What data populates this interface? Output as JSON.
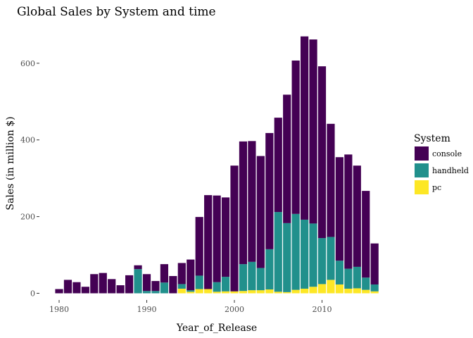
{
  "chart_data": {
    "type": "bar",
    "stacked": true,
    "title": "Global Sales by System and time",
    "xlabel": "Year_of_Release",
    "ylabel": "Sales (in million $)",
    "xticks": [
      1980,
      1990,
      2000,
      2010
    ],
    "yticks": [
      0,
      200,
      400,
      600
    ],
    "ylim": [
      0,
      680
    ],
    "grid": false,
    "legend_title": "System",
    "legend_position": "right",
    "years": [
      1980,
      1981,
      1982,
      1983,
      1984,
      1985,
      1986,
      1987,
      1988,
      1989,
      1990,
      1991,
      1992,
      1993,
      1994,
      1995,
      1996,
      1997,
      1998,
      1999,
      2000,
      2001,
      2002,
      2003,
      2004,
      2005,
      2006,
      2007,
      2008,
      2009,
      2010,
      2011,
      2012,
      2013,
      2014,
      2015,
      2016
    ],
    "series": [
      {
        "name": "pc",
        "color": "#FDE725",
        "values": [
          0,
          0,
          0,
          0,
          0,
          0,
          0,
          0,
          0,
          0,
          0,
          0,
          0,
          0,
          12,
          4,
          11,
          11,
          4,
          5,
          5,
          6,
          8,
          8,
          10,
          4,
          3,
          9,
          12,
          17,
          24,
          35,
          23,
          12,
          13,
          9,
          5
        ]
      },
      {
        "name": "handheld",
        "color": "#21908C",
        "values": [
          0,
          0,
          0,
          0,
          0,
          0,
          0,
          0,
          0,
          63,
          6,
          6,
          28,
          0,
          12,
          4,
          35,
          0,
          25,
          38,
          0,
          70,
          74,
          58,
          105,
          208,
          180,
          198,
          180,
          165,
          120,
          112,
          62,
          52,
          56,
          32,
          18
        ]
      },
      {
        "name": "console",
        "color": "#440154",
        "values": [
          11,
          35,
          29,
          17,
          50,
          53,
          37,
          21,
          47,
          10,
          44,
          26,
          48,
          45,
          55,
          80,
          153,
          245,
          226,
          207,
          328,
          320,
          315,
          292,
          303,
          246,
          335,
          400,
          478,
          480,
          448,
          295,
          270,
          298,
          264,
          226,
          107
        ]
      }
    ]
  }
}
